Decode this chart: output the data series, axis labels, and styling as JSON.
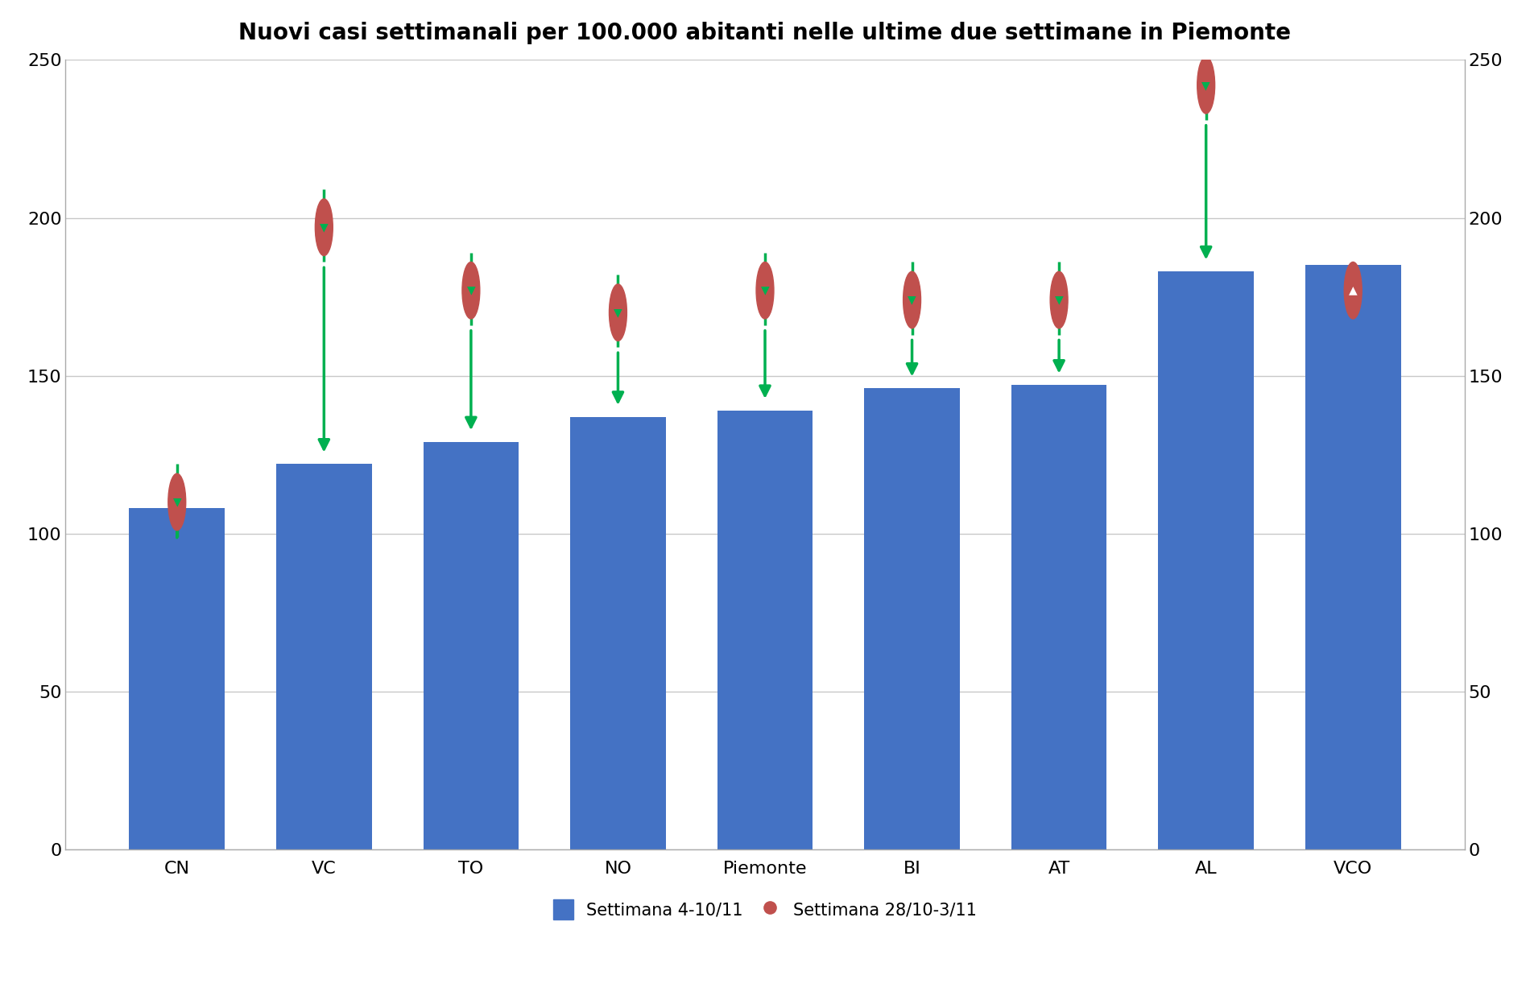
{
  "title": "Nuovi casi settimanali per 100.000 abitanti nelle ultime due settimane in Piemonte",
  "categories": [
    "CN",
    "VC",
    "TO",
    "NO",
    "Piemonte",
    "BI",
    "AT",
    "AL",
    "VCO"
  ],
  "bar_values": [
    108,
    122,
    129,
    137,
    139,
    146,
    147,
    183,
    185
  ],
  "dot_values": [
    110,
    197,
    177,
    170,
    177,
    174,
    174,
    242,
    177
  ],
  "bar_color": "#4472C4",
  "dot_color": "#C0504D",
  "arrow_color_down": "#00B050",
  "arrow_color_up": "#FFFFFF",
  "ylim": [
    0,
    250
  ],
  "yticks": [
    0,
    50,
    100,
    150,
    200,
    250
  ],
  "legend_bar_label": "Settimana 4-10/11",
  "legend_dot_label": "Settimana 28/10-3/11",
  "title_fontsize": 20,
  "tick_fontsize": 16,
  "legend_fontsize": 15,
  "background_color": "#FFFFFF",
  "plot_bg_color": "#FFFFFF",
  "grid_color": "#C8C8C8",
  "border_color": "#AAAAAA"
}
